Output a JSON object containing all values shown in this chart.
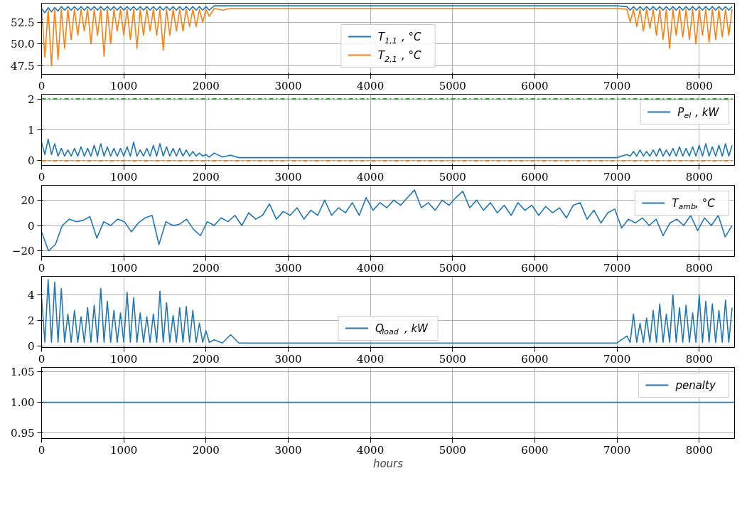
{
  "chart_data": [
    {
      "type": "line",
      "xlim": [
        0,
        8430
      ],
      "xticks": [
        0,
        1000,
        2000,
        3000,
        4000,
        5000,
        6000,
        7000,
        8000
      ],
      "ylim": [
        46.5,
        54.7
      ],
      "yticks": [
        {
          "value": 47.5,
          "label": "47.5"
        },
        {
          "value": 50,
          "label": "50.0"
        },
        {
          "value": 52.5,
          "label": "52.5"
        }
      ],
      "grid": true,
      "legend": "bottom",
      "x": [
        0,
        40,
        80,
        120,
        160,
        200,
        240,
        280,
        320,
        360,
        400,
        440,
        480,
        520,
        560,
        600,
        640,
        680,
        720,
        760,
        800,
        840,
        880,
        920,
        960,
        1000,
        1040,
        1080,
        1120,
        1160,
        1200,
        1240,
        1280,
        1320,
        1360,
        1400,
        1440,
        1480,
        1520,
        1560,
        1600,
        1640,
        1680,
        1720,
        1760,
        1800,
        1840,
        1880,
        1920,
        1960,
        2000,
        2040,
        2100,
        2200,
        2300,
        2400,
        7000,
        7120,
        7160,
        7200,
        7240,
        7280,
        7320,
        7360,
        7400,
        7440,
        7480,
        7520,
        7560,
        7600,
        7640,
        7680,
        7720,
        7760,
        7800,
        7840,
        7880,
        7920,
        7960,
        8000,
        8040,
        8080,
        8120,
        8160,
        8200,
        8240,
        8280,
        8320,
        8360,
        8400
      ],
      "series": [
        {
          "name": "T$_{1,1}$, °C",
          "color": "#1f77b4",
          "values": [
            54.1,
            53.6,
            54.2,
            53.7,
            54.2,
            53.8,
            54.3,
            53.9,
            54.3,
            53.9,
            54.3,
            53.9,
            54.3,
            53.9,
            54.3,
            53.9,
            54.3,
            53.9,
            54.3,
            53.9,
            54.3,
            53.9,
            54.3,
            53.9,
            54.3,
            53.9,
            54.3,
            53.9,
            54.3,
            53.9,
            54.3,
            53.9,
            54.3,
            53.9,
            54.3,
            53.9,
            54.3,
            53.9,
            54.3,
            53.9,
            54.3,
            53.9,
            54.3,
            53.9,
            54.3,
            53.9,
            54.3,
            53.9,
            54.3,
            53.9,
            54.3,
            53.9,
            54.4,
            54.4,
            54.4,
            54.4,
            54.4,
            54.3,
            53.9,
            54.3,
            53.9,
            54.3,
            53.9,
            54.3,
            53.9,
            54.3,
            53.9,
            54.3,
            53.9,
            54.3,
            53.9,
            54.3,
            53.9,
            54.3,
            53.9,
            54.3,
            53.9,
            54.3,
            53.9,
            54.3,
            53.9,
            54.3,
            53.9,
            54.3,
            53.9,
            54.3,
            53.9,
            54.3,
            53.9,
            54.3
          ]
        },
        {
          "name": "T$_{2,1}$, °C",
          "color": "#ff7f0e",
          "values": [
            54.0,
            48.5,
            54.0,
            47.5,
            54.0,
            48.2,
            54.0,
            49.5,
            54.0,
            50.5,
            54.0,
            51.0,
            54.0,
            51.5,
            54.0,
            50.0,
            54.0,
            51.0,
            54.0,
            48.6,
            54.0,
            50.0,
            54.0,
            51.5,
            54.0,
            51.0,
            54.0,
            50.5,
            54.0,
            49.5,
            54.0,
            51.0,
            54.0,
            51.5,
            54.0,
            51.0,
            54.0,
            49.3,
            54.0,
            51.0,
            54.0,
            51.5,
            54.0,
            51.5,
            54.0,
            52.0,
            54.0,
            52.0,
            54.0,
            52.5,
            54.0,
            53.2,
            54.1,
            53.9,
            54.1,
            54.1,
            54.1,
            54.0,
            52.5,
            54.0,
            52.0,
            54.0,
            51.5,
            54.0,
            51.8,
            54.0,
            51.0,
            54.0,
            50.5,
            54.0,
            49.5,
            54.0,
            51.0,
            54.0,
            50.8,
            54.0,
            50.5,
            54.0,
            50.0,
            54.0,
            51.0,
            54.0,
            50.2,
            54.0,
            50.5,
            54.0,
            50.8,
            54.0,
            51.0,
            54.0
          ]
        }
      ]
    },
    {
      "type": "line",
      "xlim": [
        0,
        8430
      ],
      "xticks": [
        0,
        1000,
        2000,
        3000,
        4000,
        5000,
        6000,
        7000,
        8000
      ],
      "ylim": [
        -0.15,
        2.15
      ],
      "yticks": [
        0,
        1,
        2
      ],
      "grid": true,
      "legend": "top right",
      "ref_lines": [
        {
          "axis": "y",
          "value": 2,
          "color": "#2ca02c",
          "line_style": "dashdot"
        },
        {
          "axis": "y",
          "value": 0,
          "color": "#ff7f0e",
          "line_style": "dashdot"
        }
      ],
      "x": [
        0,
        40,
        80,
        120,
        160,
        200,
        240,
        280,
        320,
        360,
        400,
        440,
        480,
        520,
        560,
        600,
        640,
        680,
        720,
        760,
        800,
        840,
        880,
        920,
        960,
        1000,
        1040,
        1080,
        1120,
        1160,
        1200,
        1240,
        1280,
        1320,
        1360,
        1400,
        1440,
        1480,
        1520,
        1560,
        1600,
        1640,
        1680,
        1720,
        1760,
        1800,
        1840,
        1880,
        1920,
        1960,
        2000,
        2040,
        2100,
        2200,
        2300,
        2400,
        7000,
        7120,
        7160,
        7200,
        7240,
        7280,
        7320,
        7360,
        7400,
        7440,
        7480,
        7520,
        7560,
        7600,
        7640,
        7680,
        7720,
        7760,
        7800,
        7840,
        7880,
        7920,
        7960,
        8000,
        8040,
        8080,
        8120,
        8160,
        8200,
        8240,
        8280,
        8320,
        8360,
        8400
      ],
      "series": [
        {
          "name": "P$_{el}$, kW",
          "color": "#1f77b4",
          "values": [
            0.6,
            0.2,
            0.7,
            0.2,
            0.55,
            0.15,
            0.4,
            0.15,
            0.35,
            0.15,
            0.4,
            0.15,
            0.45,
            0.15,
            0.4,
            0.15,
            0.5,
            0.15,
            0.55,
            0.15,
            0.45,
            0.15,
            0.4,
            0.15,
            0.4,
            0.15,
            0.45,
            0.15,
            0.6,
            0.15,
            0.35,
            0.15,
            0.4,
            0.15,
            0.5,
            0.15,
            0.55,
            0.15,
            0.45,
            0.15,
            0.4,
            0.15,
            0.4,
            0.15,
            0.35,
            0.15,
            0.3,
            0.15,
            0.25,
            0.15,
            0.2,
            0.12,
            0.25,
            0.12,
            0.18,
            0.1,
            0.1,
            0.2,
            0.15,
            0.3,
            0.15,
            0.35,
            0.15,
            0.3,
            0.15,
            0.35,
            0.15,
            0.4,
            0.15,
            0.35,
            0.15,
            0.4,
            0.15,
            0.45,
            0.15,
            0.4,
            0.15,
            0.45,
            0.15,
            0.5,
            0.15,
            0.55,
            0.15,
            0.45,
            0.15,
            0.5,
            0.15,
            0.55,
            0.15,
            0.5
          ]
        }
      ]
    },
    {
      "type": "line",
      "xlim": [
        0,
        8430
      ],
      "xticks": [
        0,
        1000,
        2000,
        3000,
        4000,
        5000,
        6000,
        7000,
        8000
      ],
      "ylim": [
        -24.4,
        31.7
      ],
      "yticks": [
        {
          "value": -20,
          "label": "−20"
        },
        0,
        20
      ],
      "grid": true,
      "legend": "top right",
      "x": [
        0,
        84,
        168,
        252,
        336,
        420,
        504,
        588,
        672,
        756,
        840,
        924,
        1008,
        1092,
        1176,
        1260,
        1344,
        1428,
        1512,
        1596,
        1680,
        1764,
        1848,
        1932,
        2016,
        2100,
        2184,
        2268,
        2352,
        2436,
        2520,
        2604,
        2688,
        2772,
        2856,
        2940,
        3024,
        3108,
        3192,
        3276,
        3360,
        3444,
        3528,
        3612,
        3696,
        3780,
        3864,
        3948,
        4032,
        4116,
        4200,
        4284,
        4368,
        4452,
        4536,
        4620,
        4704,
        4788,
        4872,
        4956,
        5040,
        5124,
        5208,
        5292,
        5376,
        5460,
        5544,
        5628,
        5712,
        5796,
        5880,
        5964,
        6048,
        6132,
        6216,
        6300,
        6384,
        6468,
        6552,
        6636,
        6720,
        6804,
        6888,
        6972,
        7056,
        7140,
        7224,
        7308,
        7392,
        7476,
        7560,
        7644,
        7728,
        7812,
        7896,
        7980,
        8064,
        8148,
        8232,
        8316,
        8400
      ],
      "series": [
        {
          "name": "T$_{amb}$, °C",
          "color": "#1f77b4",
          "values": [
            -5,
            -20,
            -15,
            0,
            5,
            3,
            4,
            7,
            -10,
            3,
            0,
            5,
            3,
            -5,
            2,
            6,
            8,
            -15,
            3,
            0,
            1,
            5,
            -3,
            -8,
            3,
            0,
            6,
            3,
            8,
            0,
            10,
            5,
            8,
            17,
            5,
            11,
            8,
            14,
            5,
            12,
            8,
            20,
            8,
            14,
            10,
            18,
            8,
            22,
            12,
            18,
            14,
            20,
            16,
            22,
            28,
            14,
            18,
            12,
            20,
            16,
            22,
            27,
            14,
            20,
            12,
            18,
            10,
            16,
            8,
            18,
            12,
            16,
            8,
            15,
            10,
            14,
            6,
            16,
            18,
            5,
            12,
            2,
            10,
            13,
            -2,
            5,
            2,
            6,
            0,
            5,
            -8,
            2,
            5,
            0,
            8,
            -4,
            6,
            0,
            8,
            -9,
            0
          ]
        }
      ]
    },
    {
      "type": "line",
      "xlim": [
        0,
        8430
      ],
      "xticks": [
        0,
        1000,
        2000,
        3000,
        4000,
        5000,
        6000,
        7000,
        8000
      ],
      "ylim": [
        -0.1,
        5.45
      ],
      "yticks": [
        0,
        2,
        4
      ],
      "grid": true,
      "legend": "bottom",
      "x": [
        0,
        40,
        80,
        120,
        160,
        200,
        240,
        280,
        320,
        360,
        400,
        440,
        480,
        520,
        560,
        600,
        640,
        680,
        720,
        760,
        800,
        840,
        880,
        920,
        960,
        1000,
        1040,
        1080,
        1120,
        1160,
        1200,
        1240,
        1280,
        1320,
        1360,
        1400,
        1440,
        1480,
        1520,
        1560,
        1600,
        1640,
        1680,
        1720,
        1760,
        1800,
        1840,
        1880,
        1920,
        1960,
        2000,
        2040,
        2100,
        2200,
        2300,
        2400,
        7000,
        7120,
        7160,
        7200,
        7240,
        7280,
        7320,
        7360,
        7400,
        7440,
        7480,
        7520,
        7560,
        7600,
        7640,
        7680,
        7720,
        7760,
        7800,
        7840,
        7880,
        7920,
        7960,
        8000,
        8040,
        8080,
        8120,
        8160,
        8200,
        8240,
        8280,
        8320,
        8360,
        8400
      ],
      "series": [
        {
          "name": "Q$_{load}$, kW",
          "color": "#1f77b4",
          "values": [
            3.8,
            0.3,
            5.2,
            0.3,
            5.0,
            0.3,
            4.5,
            0.3,
            2.5,
            0.3,
            2.8,
            0.3,
            2.3,
            0.3,
            3.0,
            0.3,
            3.2,
            0.3,
            4.5,
            0.3,
            3.5,
            0.3,
            2.8,
            0.3,
            2.6,
            0.3,
            4.2,
            0.3,
            3.8,
            0.3,
            2.6,
            0.3,
            2.3,
            0.3,
            2.5,
            0.3,
            4.3,
            0.3,
            3.4,
            0.3,
            2.4,
            0.3,
            3.0,
            0.3,
            3.1,
            0.3,
            2.8,
            0.3,
            1.8,
            0.3,
            1.2,
            0.3,
            0.5,
            0.25,
            0.9,
            0.25,
            0.25,
            0.8,
            0.3,
            2.5,
            0.3,
            1.8,
            0.3,
            2.2,
            0.3,
            2.8,
            0.3,
            3.3,
            0.3,
            2.5,
            0.3,
            4.0,
            0.3,
            3.0,
            0.3,
            3.2,
            0.3,
            2.6,
            0.3,
            4.0,
            0.3,
            3.5,
            0.3,
            3.3,
            0.3,
            2.8,
            0.3,
            3.6,
            0.3,
            3.0
          ]
        }
      ]
    },
    {
      "type": "line",
      "xlim": [
        0,
        8430
      ],
      "xticks": [
        0,
        1000,
        2000,
        3000,
        4000,
        5000,
        6000,
        7000,
        8000
      ],
      "ylim": [
        0.941,
        1.057
      ],
      "yticks": [
        {
          "value": 0.95,
          "label": "0.95"
        },
        {
          "value": 1,
          "label": "1.00"
        },
        {
          "value": 1.05,
          "label": "1.05"
        }
      ],
      "grid": true,
      "legend": "top right",
      "xlabel": "hours",
      "x": [
        0,
        8430
      ],
      "series": [
        {
          "name": "penalty",
          "color": "#1f77b4",
          "values": [
            1,
            1
          ]
        }
      ]
    }
  ]
}
